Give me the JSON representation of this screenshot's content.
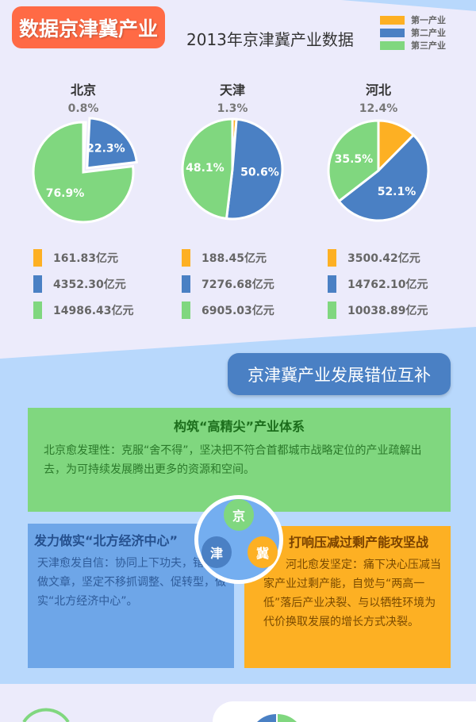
{
  "header": {
    "badge": "数据京津冀产业",
    "title": "2013年京津冀产业数据"
  },
  "legend": [
    {
      "label": "第一产业",
      "color": "#fdb023"
    },
    {
      "label": "第二产业",
      "color": "#4a80c4"
    },
    {
      "label": "第三产业",
      "color": "#80d77f"
    }
  ],
  "chart_data": [
    {
      "type": "pie",
      "title": "北京",
      "labels": [
        "第一产业",
        "第二产业",
        "第三产业"
      ],
      "values": [
        0.8,
        22.3,
        76.9
      ],
      "value_labels": [
        "0.8%",
        "22.3%",
        "76.9%"
      ],
      "amounts": [
        "161.83亿元",
        "4352.30亿元",
        "14986.43亿元"
      ],
      "exploded": 1
    },
    {
      "type": "pie",
      "title": "天津",
      "labels": [
        "第一产业",
        "第二产业",
        "第三产业"
      ],
      "values": [
        1.3,
        50.6,
        48.1
      ],
      "value_labels": [
        "1.3%",
        "50.6%",
        "48.1%"
      ],
      "amounts": [
        "188.45亿元",
        "7276.68亿元",
        "6905.03亿元"
      ]
    },
    {
      "type": "pie",
      "title": "河北",
      "labels": [
        "第一产业",
        "第二产业",
        "第三产业"
      ],
      "values": [
        12.4,
        52.1,
        35.5
      ],
      "value_labels": [
        "12.4%",
        "52.1%",
        "35.5%"
      ],
      "amounts": [
        "3500.42亿元",
        "14762.10亿元",
        "10038.89亿元"
      ]
    }
  ],
  "section2": {
    "title": "京津冀产业发展错位互补",
    "beijing": {
      "title": "构筑“高精尖”产业体系",
      "text": "北京愈发理性：克服“舍不得”，坚决把不符合首都城市战略定位的产业疏解出去，为可持续发展腾出更多的资源和空间。"
    },
    "tianjin": {
      "title": "发力做实“北方经济中心”",
      "text": "天津愈发自信：协同上下功夫，错位上做文章，坚定不移抓调整、促转型，做实“北方经济中心”。"
    },
    "hebei": {
      "title": "打响压减过剩产能攻坚战",
      "text": "河北愈发坚定：痛下决心压减当家产业过剩产能，自觉与“两高一低”落后产业决裂、与以牺牲环境为代价换取发展的增长方式决裂。"
    },
    "hub": {
      "jing": "京",
      "jin": "津",
      "ji": "冀"
    }
  }
}
